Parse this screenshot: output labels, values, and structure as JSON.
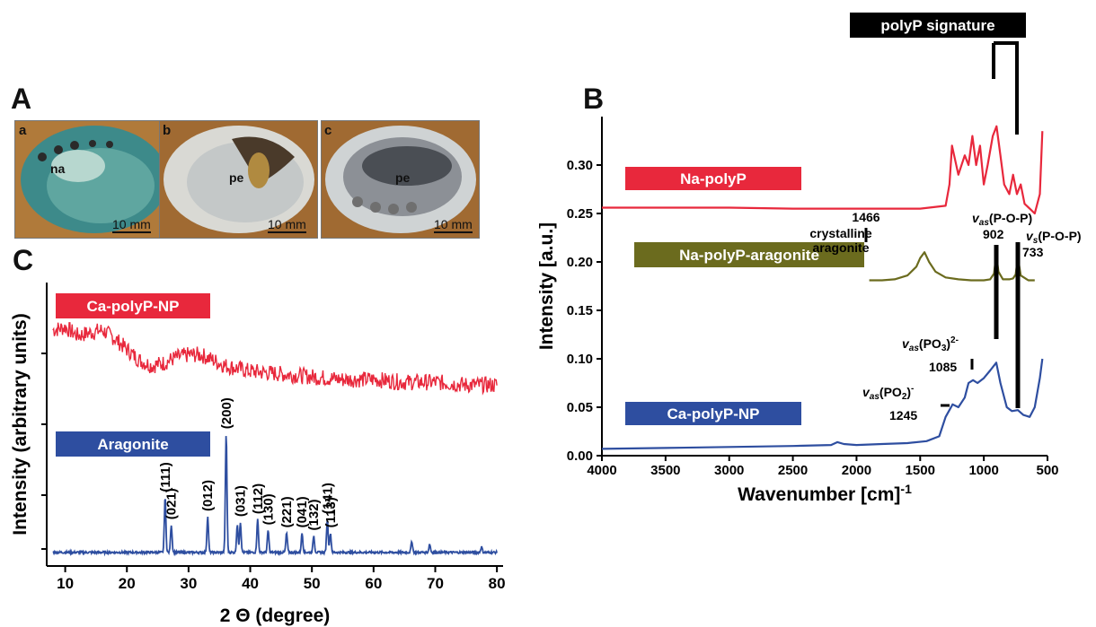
{
  "panels": {
    "A": {
      "letter": "A",
      "photos": [
        {
          "tag": "a",
          "label": "na",
          "scale": "10 mm"
        },
        {
          "tag": "b",
          "label": "pe",
          "scale": "10 mm"
        },
        {
          "tag": "c",
          "label": "pe",
          "scale": "10 mm"
        }
      ]
    },
    "B": {
      "letter": "B"
    },
    "C": {
      "letter": "C"
    }
  },
  "chart_data": [
    {
      "type": "line",
      "panel": "B",
      "xlabel": "Wavenumber [cm]",
      "xlabel_sup": "-1",
      "ylabel": "Intensity [a.u.]",
      "xlim": [
        4000,
        500
      ],
      "ylim": [
        0.0,
        0.35
      ],
      "xticks": [
        "4000",
        "3500",
        "3000",
        "2500",
        "2000",
        "1500",
        "1000",
        "500"
      ],
      "yticks": [
        "0.00",
        "0.05",
        "0.10",
        "0.15",
        "0.20",
        "0.25",
        "0.30"
      ],
      "colors": {
        "Na-polyP": "#e8283c",
        "Na-polyP-aragonite": "#6b6b1e",
        "Ca-polyP-NP": "#2e4ea0"
      },
      "series": [
        {
          "name": "Na-polyP",
          "x": [
            4000,
            3000,
            2500,
            2000,
            1500,
            1300,
            1270,
            1250,
            1200,
            1150,
            1120,
            1090,
            1060,
            1030,
            1000,
            970,
            930,
            900,
            870,
            840,
            800,
            770,
            740,
            710,
            680,
            640,
            600,
            560,
            540
          ],
          "y": [
            0.256,
            0.256,
            0.255,
            0.255,
            0.255,
            0.258,
            0.28,
            0.32,
            0.29,
            0.31,
            0.3,
            0.33,
            0.3,
            0.32,
            0.28,
            0.3,
            0.33,
            0.34,
            0.31,
            0.28,
            0.27,
            0.29,
            0.27,
            0.28,
            0.26,
            0.255,
            0.25,
            0.27,
            0.335
          ]
        },
        {
          "name": "Na-polyP-aragonite",
          "x": [
            1900,
            1800,
            1700,
            1600,
            1530,
            1500,
            1466,
            1430,
            1380,
            1300,
            1200,
            1100,
            1000,
            950,
            920,
            902,
            885,
            850,
            800,
            770,
            750,
            733,
            710,
            650,
            600
          ],
          "y": [
            0.181,
            0.181,
            0.182,
            0.186,
            0.195,
            0.204,
            0.21,
            0.2,
            0.19,
            0.184,
            0.182,
            0.181,
            0.181,
            0.182,
            0.188,
            0.208,
            0.19,
            0.182,
            0.182,
            0.183,
            0.187,
            0.205,
            0.186,
            0.181,
            0.181
          ]
        },
        {
          "name": "Ca-polyP-NP",
          "x": [
            4000,
            3500,
            3000,
            2500,
            2200,
            2150,
            2100,
            2000,
            1800,
            1600,
            1450,
            1350,
            1300,
            1245,
            1200,
            1150,
            1120,
            1085,
            1050,
            1000,
            950,
            902,
            870,
            820,
            780,
            733,
            690,
            640,
            600,
            560,
            540
          ],
          "y": [
            0.007,
            0.008,
            0.009,
            0.01,
            0.011,
            0.014,
            0.012,
            0.011,
            0.012,
            0.013,
            0.015,
            0.02,
            0.04,
            0.053,
            0.05,
            0.06,
            0.075,
            0.078,
            0.075,
            0.08,
            0.088,
            0.096,
            0.075,
            0.05,
            0.046,
            0.047,
            0.042,
            0.04,
            0.05,
            0.08,
            0.1
          ]
        }
      ],
      "legend_boxes": [
        "Na-polyP",
        "Na-polyP-aragonite",
        "Ca-polyP-NP"
      ],
      "signature_label": "polyP signature",
      "annotations": {
        "crystalline": "crystalline",
        "aragonite": "aragonite",
        "p1466": "1466",
        "vas_pop_v": "v",
        "vas_pop_sub": "as",
        "vas_pop_rest": "(P-O-P)",
        "p902": "902",
        "vs_pop_v": "v",
        "vs_pop_sub": "s",
        "vs_pop_rest": "(P-O-P)",
        "p733": "733",
        "vas_po3_v": "v",
        "vas_po3_sub": "as",
        "vas_po3_rest": "(PO",
        "vas_po3_sub3": "3",
        "vas_po3_close": ")",
        "vas_po3_sup": "2-",
        "p1085": "1085",
        "vas_po2_v": "v",
        "vas_po2_sub": "as",
        "vas_po2_rest": "(PO",
        "vas_po2_sub2": "2",
        "vas_po2_close": ")",
        "vas_po2_sup": "-",
        "p1245": "1245"
      }
    },
    {
      "type": "line",
      "panel": "C",
      "xlabel": "2 Θ  (degree)",
      "ylabel": "Intensity (arbitrary units)",
      "xlim": [
        7,
        81
      ],
      "xticks": [
        "10",
        "20",
        "30",
        "40",
        "50",
        "60",
        "70",
        "80"
      ],
      "colors": {
        "Ca-polyP-NP": "#e8283c",
        "Aragonite": "#2e4ea0"
      },
      "series": [
        {
          "name": "Ca-polyP-NP",
          "x": [
            8,
            10,
            12,
            14,
            16,
            18,
            20,
            22,
            24,
            26,
            28,
            30,
            32,
            34,
            36,
            38,
            40,
            45,
            50,
            55,
            60,
            65,
            70,
            75,
            80
          ],
          "y": [
            0.84,
            0.85,
            0.82,
            0.83,
            0.84,
            0.81,
            0.77,
            0.73,
            0.71,
            0.72,
            0.74,
            0.75,
            0.75,
            0.73,
            0.71,
            0.7,
            0.69,
            0.68,
            0.67,
            0.66,
            0.66,
            0.65,
            0.65,
            0.64,
            0.64
          ]
        },
        {
          "name": "Aragonite",
          "peaks": [
            {
              "x": 26.2,
              "h": 0.2,
              "label": "(111)"
            },
            {
              "x": 27.2,
              "h": 0.1,
              "label": "(021)"
            },
            {
              "x": 33.1,
              "h": 0.13,
              "label": "(012)"
            },
            {
              "x": 36.1,
              "h": 0.43,
              "label": "(200)"
            },
            {
              "x": 37.9,
              "h": 0.1,
              "label": ""
            },
            {
              "x": 38.4,
              "h": 0.11,
              "label": "(031)"
            },
            {
              "x": 41.2,
              "h": 0.12,
              "label": "(112)"
            },
            {
              "x": 42.9,
              "h": 0.08,
              "label": "(130)"
            },
            {
              "x": 45.9,
              "h": 0.07,
              "label": "(221)"
            },
            {
              "x": 48.4,
              "h": 0.07,
              "label": "(041)"
            },
            {
              "x": 50.3,
              "h": 0.06,
              "label": "(132)"
            },
            {
              "x": 52.5,
              "h": 0.12,
              "label": "(141)"
            },
            {
              "x": 53.0,
              "h": 0.07,
              "label": "(113)"
            },
            {
              "x": 66.2,
              "h": 0.04,
              "label": ""
            },
            {
              "x": 69.1,
              "h": 0.03,
              "label": ""
            },
            {
              "x": 77.5,
              "h": 0.02,
              "label": ""
            }
          ]
        }
      ],
      "legend_boxes": [
        "Ca-polyP-NP",
        "Aragonite"
      ],
      "peak_labels": [
        "(111)",
        "(012)",
        "(200)",
        "(031)",
        "(112)",
        "(130)",
        "(221)",
        "(041)",
        "(132)",
        "(141)",
        "(113)"
      ]
    }
  ]
}
